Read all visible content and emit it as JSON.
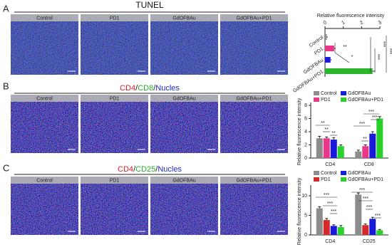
{
  "figure": {
    "panels": [
      {
        "label": "A",
        "title_parts": [
          {
            "text": "TUNEL",
            "color": "#111111"
          }
        ],
        "images": [
          "Control",
          "PD1",
          "GdOFBAu",
          "GdOFBAu+PD1"
        ]
      },
      {
        "label": "B",
        "title_parts": [
          {
            "text": "CD4",
            "color": "#e0202a"
          },
          {
            "text": "/",
            "color": "#222222"
          },
          {
            "text": "CD8",
            "color": "#22b022"
          },
          {
            "text": "/",
            "color": "#222222"
          },
          {
            "text": "Nucles",
            "color": "#1a2ad0"
          }
        ],
        "images": [
          "Control",
          "PD1",
          "GdOFBAu",
          "GdOFBAu+PD1"
        ]
      },
      {
        "label": "C",
        "title_parts": [
          {
            "text": "CD4",
            "color": "#e0202a"
          },
          {
            "text": "/",
            "color": "#222222"
          },
          {
            "text": "CD25",
            "color": "#22b022"
          },
          {
            "text": "/",
            "color": "#222222"
          },
          {
            "text": "Nucles",
            "color": "#1a2ad0"
          }
        ],
        "images": [
          "Control",
          "PD1",
          "GdOFBAu",
          "GdOFBAu+PD1"
        ]
      }
    ]
  },
  "chart_data": [
    {
      "type": "hbar",
      "x_label": "Relative fluorescence intensity",
      "categories": [
        "Control",
        "PD1",
        "GdOFBAu",
        "GdOFBAu+PD1"
      ],
      "values": [
        0.1,
        0.5,
        0.3,
        2.6
      ],
      "errors": [
        0.05,
        0.08,
        0.06,
        0.12
      ],
      "colors": [
        "#8c8c8c",
        "#e8378a",
        "#1a1adb",
        "#2bb52b"
      ],
      "xlim": [
        0,
        3
      ],
      "xticks": [
        0,
        1,
        2,
        3
      ],
      "annotations": [
        "**",
        "*",
        "***",
        "***",
        "***"
      ]
    },
    {
      "type": "grouped_bar",
      "y_label": "Relative fluorescence intensity",
      "categories": [
        "CD4",
        "CD8"
      ],
      "series": [
        {
          "name": "Control",
          "color": "#8c8c8c",
          "values": [
            3.0,
            1.0
          ],
          "errors": [
            0.3,
            0.2
          ]
        },
        {
          "name": "PD1",
          "color": "#e8378a",
          "values": [
            3.0,
            1.8
          ],
          "errors": [
            0.2,
            0.2
          ]
        },
        {
          "name": "GdOFBAu",
          "color": "#1a1adb",
          "values": [
            2.8,
            3.7
          ],
          "errors": [
            0.3,
            0.3
          ]
        },
        {
          "name": "GdOFBAu+PD1",
          "color": "#2bd12b",
          "values": [
            1.8,
            6.0
          ],
          "errors": [
            0.2,
            0.3
          ]
        }
      ],
      "ylim": [
        0,
        8
      ],
      "yticks": [
        0,
        2,
        4,
        6,
        8
      ],
      "annotations": [
        "**",
        "**",
        "**",
        "***",
        "**",
        "***",
        "***"
      ]
    },
    {
      "type": "grouped_bar",
      "y_label": "Relative fluorescence intensity",
      "categories": [
        "CD4",
        "CD25"
      ],
      "series": [
        {
          "name": "Control",
          "color": "#8c8c8c",
          "values": [
            6.8,
            10.3
          ],
          "errors": [
            0.4,
            0.4
          ]
        },
        {
          "name": "PD1",
          "color": "#d42a2a",
          "values": [
            3.8,
            2.5
          ],
          "errors": [
            0.4,
            0.3
          ]
        },
        {
          "name": "GdOFBAu",
          "color": "#1a1adb",
          "values": [
            2.3,
            4.1
          ],
          "errors": [
            0.3,
            0.4
          ]
        },
        {
          "name": "GdOFBAu+PD1",
          "color": "#2bd12b",
          "values": [
            2.0,
            1.2
          ],
          "errors": [
            0.4,
            0.2
          ]
        }
      ],
      "ylim": [
        0,
        12
      ],
      "yticks": [
        0,
        5,
        10
      ],
      "annotations": [
        "***",
        "***",
        "***",
        "***",
        "***",
        "***",
        "***"
      ]
    }
  ]
}
